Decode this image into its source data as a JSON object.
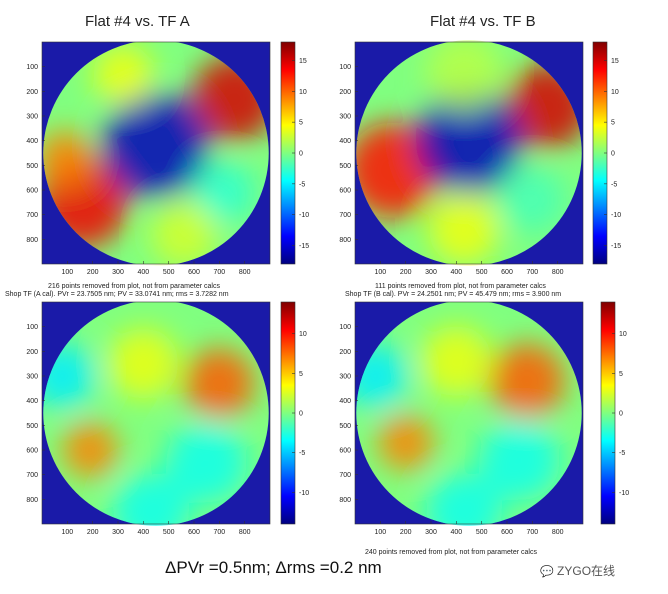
{
  "summary": "ΔPVr =0.5nm; Δrms =0.2 nm",
  "watermark": "ZYGO在线",
  "chart_data": [
    {
      "type": "heatmap",
      "title": "Flat #4 vs. TF A",
      "annotations": [
        "216 points removed from plot, not from parameter calcs",
        "Shop TF (A cal). PVr = 23.7505 nm; PV = 33.0741 nm; rms = 3.7282 nm"
      ],
      "x_ticks": [
        "100",
        "200",
        "300",
        "400",
        "500",
        "600",
        "700",
        "800"
      ],
      "y_ticks": [
        "100",
        "200",
        "300",
        "400",
        "500",
        "600",
        "700",
        "800"
      ],
      "colorbar_ticks": [
        "15",
        "10",
        "5",
        "0",
        "-5",
        "-10",
        "-15"
      ],
      "colorbar_range": [
        -18,
        18
      ],
      "hotspots": [
        {
          "x": 760,
          "y": 230,
          "r": 170,
          "v": 15
        },
        {
          "x": 160,
          "y": 650,
          "r": 180,
          "v": 14
        },
        {
          "x": 90,
          "y": 470,
          "r": 110,
          "v": 9
        },
        {
          "x": 450,
          "y": 420,
          "r": 210,
          "v": -16
        },
        {
          "x": 320,
          "y": 130,
          "r": 120,
          "v": 4
        },
        {
          "x": 720,
          "y": 610,
          "r": 120,
          "v": -3
        },
        {
          "x": 560,
          "y": 780,
          "r": 130,
          "v": 3
        }
      ]
    },
    {
      "type": "heatmap",
      "title": "Flat #4 vs. TF B",
      "annotations": [
        "111 points removed from plot, not from parameter calcs",
        "Shop TF (B cal). PVr = 24.2501 nm; PV = 45.479 nm; rms = 3.900 nm"
      ],
      "x_ticks": [
        "100",
        "200",
        "300",
        "400",
        "500",
        "600",
        "700",
        "800"
      ],
      "y_ticks": [
        "100",
        "200",
        "300",
        "400",
        "500",
        "600",
        "700",
        "800"
      ],
      "colorbar_ticks": [
        "15",
        "10",
        "5",
        "0",
        "-5",
        "-10",
        "-15"
      ],
      "colorbar_range": [
        -18,
        18
      ],
      "hotspots": [
        {
          "x": 760,
          "y": 260,
          "r": 170,
          "v": 15
        },
        {
          "x": 150,
          "y": 520,
          "r": 190,
          "v": 13
        },
        {
          "x": 450,
          "y": 400,
          "r": 210,
          "v": -16
        },
        {
          "x": 430,
          "y": 120,
          "r": 150,
          "v": 2
        },
        {
          "x": 700,
          "y": 640,
          "r": 130,
          "v": -2
        },
        {
          "x": 430,
          "y": 760,
          "r": 140,
          "v": 4
        }
      ]
    },
    {
      "type": "heatmap",
      "title": "",
      "annotations": [],
      "x_ticks": [
        "100",
        "200",
        "300",
        "400",
        "500",
        "600",
        "700",
        "800"
      ],
      "y_ticks": [
        "100",
        "200",
        "300",
        "400",
        "500",
        "600",
        "700",
        "800"
      ],
      "colorbar_ticks": [
        "10",
        "5",
        "0",
        "-5",
        "-10"
      ],
      "colorbar_range": [
        -14,
        14
      ],
      "hotspots": [
        {
          "x": 700,
          "y": 330,
          "r": 140,
          "v": 8
        },
        {
          "x": 190,
          "y": 600,
          "r": 110,
          "v": 7
        },
        {
          "x": 650,
          "y": 650,
          "r": 160,
          "v": -3
        },
        {
          "x": 80,
          "y": 300,
          "r": 130,
          "v": -4
        },
        {
          "x": 430,
          "y": 850,
          "r": 150,
          "v": -3
        },
        {
          "x": 400,
          "y": 250,
          "r": 140,
          "v": 3
        }
      ]
    },
    {
      "type": "heatmap",
      "title": "",
      "annotations": [
        "240 points removed from plot, not from parameter calcs"
      ],
      "x_ticks": [
        "100",
        "200",
        "300",
        "400",
        "500",
        "600",
        "700",
        "800"
      ],
      "y_ticks": [
        "100",
        "200",
        "300",
        "400",
        "500",
        "600",
        "700",
        "800"
      ],
      "colorbar_ticks": [
        "10",
        "5",
        "0",
        "-5",
        "-10"
      ],
      "colorbar_range": [
        -14,
        14
      ],
      "hotspots": [
        {
          "x": 680,
          "y": 320,
          "r": 150,
          "v": 8
        },
        {
          "x": 200,
          "y": 570,
          "r": 110,
          "v": 7
        },
        {
          "x": 650,
          "y": 640,
          "r": 160,
          "v": -3
        },
        {
          "x": 80,
          "y": 300,
          "r": 130,
          "v": -4
        },
        {
          "x": 430,
          "y": 850,
          "r": 150,
          "v": -3
        },
        {
          "x": 400,
          "y": 240,
          "r": 140,
          "v": 3
        }
      ]
    }
  ]
}
